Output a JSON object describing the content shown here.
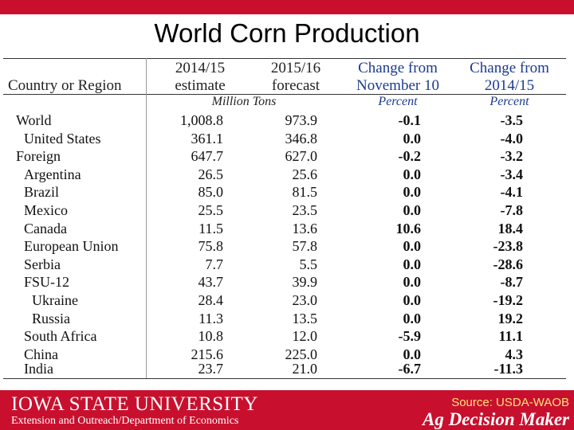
{
  "title": "World Corn Production",
  "headers": {
    "country": "Country or Region",
    "col1_line1": "2014/15",
    "col1_line2": "estimate",
    "col2_line1": "2015/16",
    "col2_line2": "forecast",
    "col3_line1": "Change from",
    "col3_line2": "November 10",
    "col4_line1": "Change from",
    "col4_line2": "2014/15"
  },
  "units": {
    "tons": "Million Tons",
    "percent3": "Percent",
    "percent4": "Percent"
  },
  "rows": [
    {
      "name": "World",
      "c1": "1,008.8",
      "c2": "973.9",
      "c3": "-0.1",
      "c4": "-3.5"
    },
    {
      "name": "United States",
      "c1": "361.1",
      "c2": "346.8",
      "c3": "0.0",
      "c4": "-4.0"
    },
    {
      "name": "Foreign",
      "c1": "647.7",
      "c2": "627.0",
      "c3": "-0.2",
      "c4": "-3.2"
    },
    {
      "name": "Argentina",
      "c1": "26.5",
      "c2": "25.6",
      "c3": "0.0",
      "c4": "-3.4"
    },
    {
      "name": "Brazil",
      "c1": "85.0",
      "c2": "81.5",
      "c3": "0.0",
      "c4": "-4.1"
    },
    {
      "name": "Mexico",
      "c1": "25.5",
      "c2": "23.5",
      "c3": "0.0",
      "c4": "-7.8"
    },
    {
      "name": "Canada",
      "c1": "11.5",
      "c2": "13.6",
      "c3": "10.6",
      "c4": "18.4"
    },
    {
      "name": "European Union",
      "c1": "75.8",
      "c2": "57.8",
      "c3": "0.0",
      "c4": "-23.8"
    },
    {
      "name": "Serbia",
      "c1": "7.7",
      "c2": "5.5",
      "c3": "0.0",
      "c4": "-28.6"
    },
    {
      "name": "FSU-12",
      "c1": "43.7",
      "c2": "39.9",
      "c3": "0.0",
      "c4": "-8.7"
    },
    {
      "name": "Ukraine",
      "c1": "28.4",
      "c2": "23.0",
      "c3": "0.0",
      "c4": "-19.2"
    },
    {
      "name": "Russia",
      "c1": "11.3",
      "c2": "13.5",
      "c3": "0.0",
      "c4": "19.2"
    },
    {
      "name": "South Africa",
      "c1": "10.8",
      "c2": "12.0",
      "c3": "-5.9",
      "c4": "11.1"
    },
    {
      "name": "China",
      "c1": "215.6",
      "c2": "225.0",
      "c3": "0.0",
      "c4": "4.3"
    },
    {
      "name": "India",
      "c1": "23.7",
      "c2": "21.0",
      "c3": "-6.7",
      "c4": "-11.3"
    }
  ],
  "footer": {
    "university": "Iowa State University",
    "department": "Extension and Outreach/Department of Economics",
    "source": "Source: USDA-WAOB",
    "brand": "Ag Decision Maker"
  },
  "colors": {
    "brand_red": "#c8102e",
    "header_blue": "#1c3b8f",
    "source_yellow": "#ffe27a"
  }
}
